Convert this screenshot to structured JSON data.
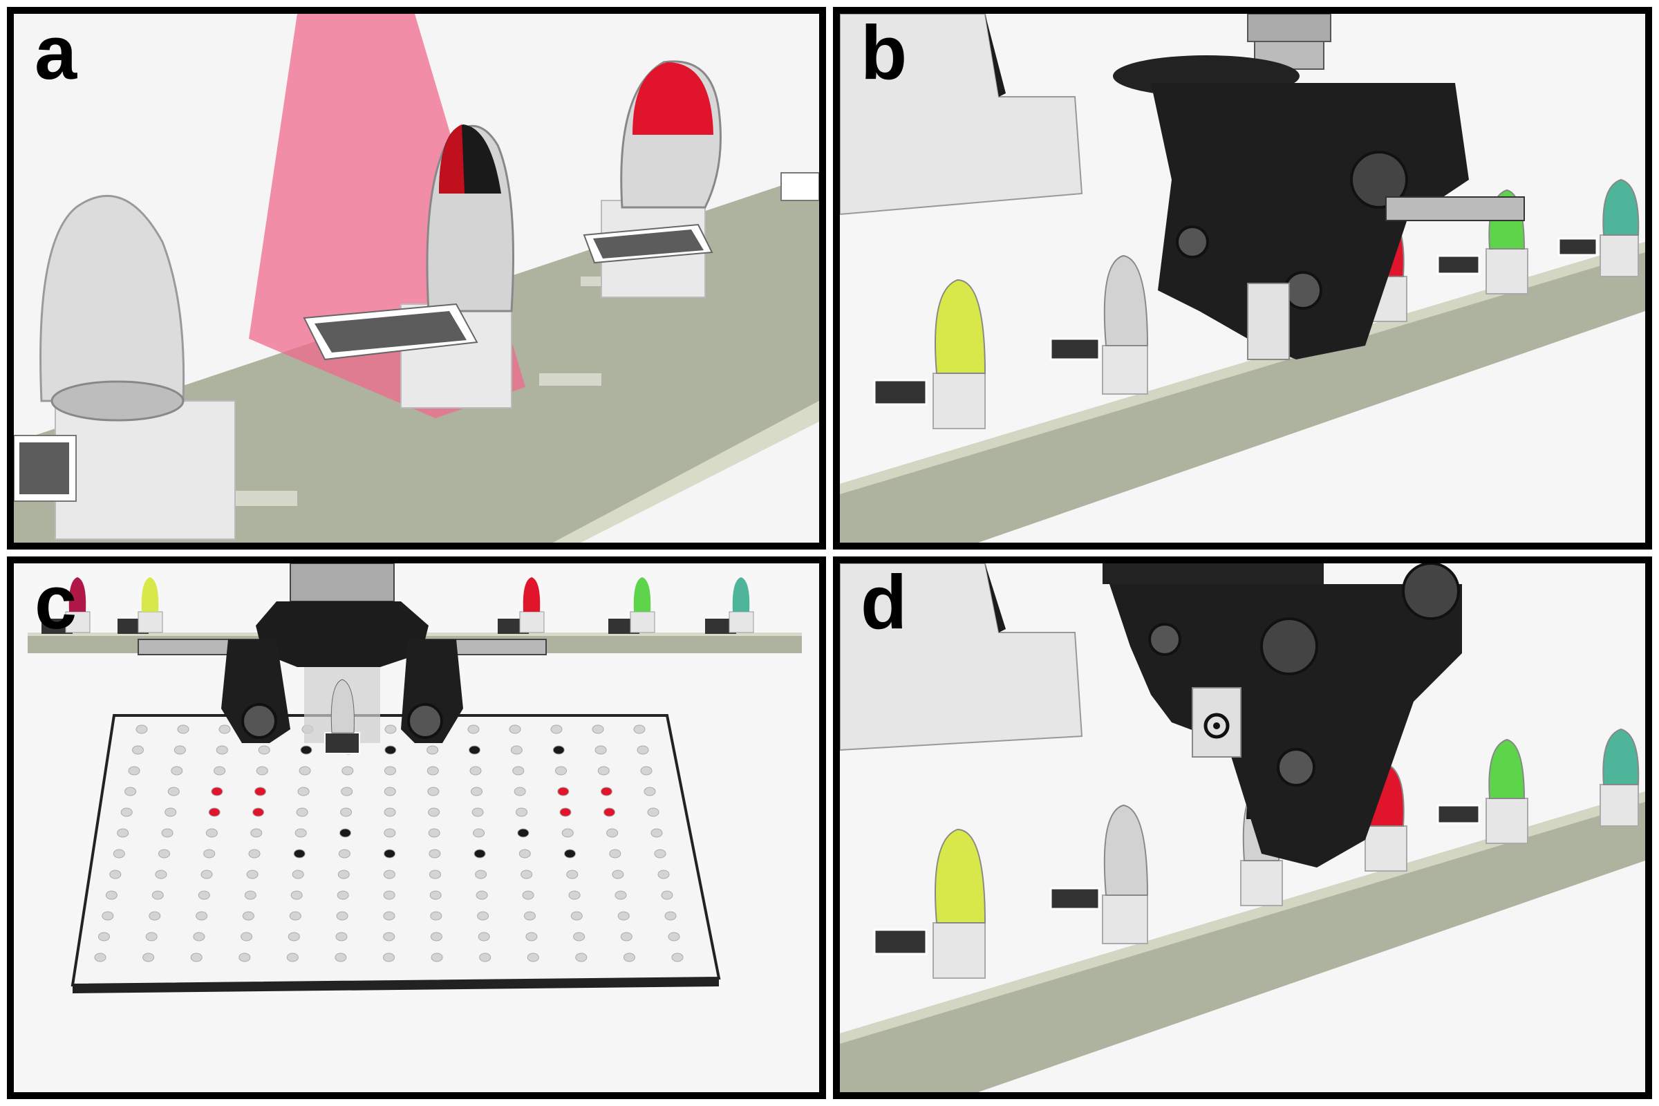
{
  "panels": [
    {
      "label": "a"
    },
    {
      "label": "b"
    },
    {
      "label": "c"
    },
    {
      "label": "d"
    }
  ],
  "colors": {
    "rail": "#aeb39f",
    "rail_edge": "#e2e4d8",
    "laser": "#f06a8c",
    "arm": "#1e1e1e",
    "cap_red": "#e0142a",
    "cap_yellow": "#d8e84a",
    "cap_green": "#5ed44a",
    "cap_teal": "#4fb59a",
    "cap_black": "#1a1a1a",
    "cap_clear": "#c8c8c8",
    "cap_magenta": "#b01848"
  }
}
